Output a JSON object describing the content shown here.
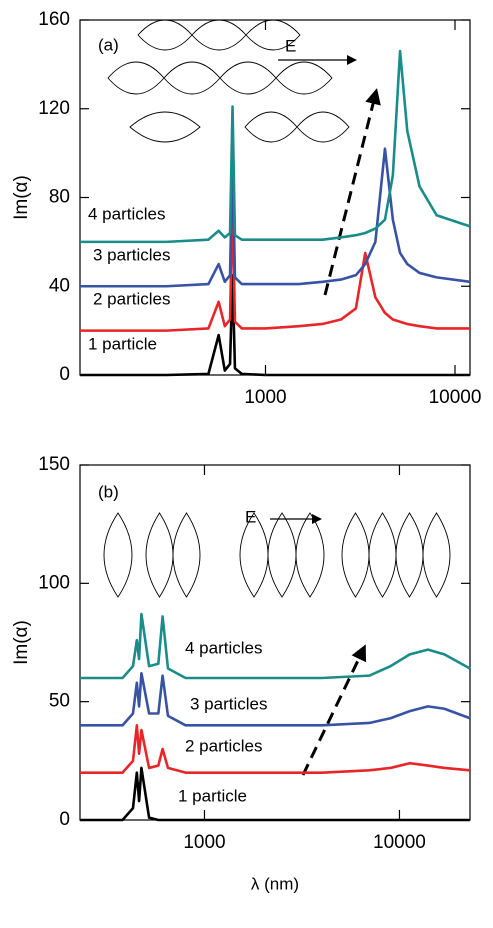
{
  "chart_data": [
    {
      "type": "line",
      "x_scale": "log",
      "y_label": "Im(α)",
      "annotations": [
        "(a)",
        "E"
      ],
      "xlim": [
        105,
        12000
      ],
      "xticks": [
        1000,
        10000
      ],
      "ylim": [
        0,
        160
      ],
      "yticks": [
        0,
        40,
        80,
        120,
        160
      ],
      "x": [
        105,
        300,
        500,
        566,
        610,
        650,
        670,
        690,
        750,
        1000,
        1500,
        2000,
        2500,
        3000,
        3360,
        3800,
        4270,
        4700,
        5130,
        5600,
        6500,
        8000,
        12000
      ],
      "series": [
        {
          "name": "1 particle",
          "color": "#000000",
          "values": [
            0,
            0,
            0.5,
            18,
            2,
            5,
            45,
            3,
            0.5,
            0,
            0,
            0,
            0,
            0,
            0,
            0,
            0,
            0,
            0,
            0,
            0,
            0,
            0
          ]
        },
        {
          "name": "2 particles",
          "color": "#e8262a",
          "values": [
            20,
            20,
            21,
            33,
            22,
            25,
            80,
            24,
            21,
            21,
            22,
            23,
            25,
            30,
            55,
            35,
            28,
            25,
            24,
            23,
            22,
            21,
            21
          ]
        },
        {
          "name": "3 particles",
          "color": "#3953a4",
          "values": [
            40,
            40,
            41,
            50,
            42,
            45,
            100,
            44,
            41,
            41,
            41,
            42,
            43,
            45,
            50,
            60,
            102,
            70,
            55,
            50,
            46,
            44,
            42
          ]
        },
        {
          "name": "4 particles",
          "color": "#1a8c8a",
          "values": [
            60,
            60,
            61,
            65,
            62,
            64,
            121,
            63,
            61,
            61,
            61,
            61,
            62,
            63,
            64,
            66,
            70,
            90,
            146,
            110,
            85,
            72,
            67
          ]
        }
      ]
    },
    {
      "type": "line",
      "x_scale": "log",
      "y_label": "Im(α)",
      "x_label": "λ (nm)",
      "annotations": [
        "(b)",
        "E"
      ],
      "xlim": [
        230,
        23000
      ],
      "xticks": [
        1000,
        10000
      ],
      "ylim": [
        0,
        150
      ],
      "yticks": [
        0,
        50,
        100,
        150
      ],
      "x": [
        230,
        380,
        430,
        450,
        462,
        475,
        520,
        580,
        610,
        650,
        800,
        1000,
        2000,
        4000,
        7000,
        9000,
        11300,
        14000,
        17000,
        23000
      ],
      "series": [
        {
          "name": "1 particle",
          "color": "#000000",
          "values": [
            0,
            0,
            5,
            20,
            8,
            22,
            1,
            0,
            0,
            0,
            0,
            0,
            0,
            0,
            0,
            0,
            0,
            0,
            0,
            0
          ]
        },
        {
          "name": "2 particles",
          "color": "#e8262a",
          "values": [
            20,
            20,
            25,
            40,
            28,
            38,
            22,
            23,
            30,
            22,
            20,
            20,
            20,
            20,
            21,
            22,
            24,
            23,
            22,
            21
          ]
        },
        {
          "name": "3 particles",
          "color": "#3953a4",
          "values": [
            40,
            40,
            45,
            58,
            48,
            62,
            45,
            45,
            61,
            44,
            40,
            40,
            40,
            40,
            41,
            43,
            46,
            48,
            47,
            43
          ]
        },
        {
          "name": "4 particles",
          "color": "#1a8c8a",
          "values": [
            60,
            60,
            65,
            76,
            68,
            87,
            65,
            66,
            86,
            64,
            60,
            60,
            60,
            60,
            61,
            65,
            70,
            72,
            70,
            64
          ]
        }
      ]
    }
  ]
}
